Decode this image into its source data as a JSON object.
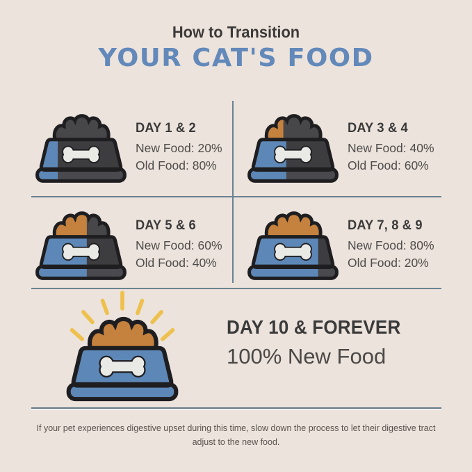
{
  "title": {
    "line1": "How to Transition",
    "line2": "YOUR CAT'S FOOD"
  },
  "steps": [
    {
      "day": "DAY 1 & 2",
      "new_food": "New Food: 20%",
      "old_food": "Old Food: 80%",
      "bowl": {
        "blue_fill_pct": 26,
        "orange_food_pct": 0
      }
    },
    {
      "day": "DAY 3 & 4",
      "new_food": "New Food: 40%",
      "old_food": "Old Food: 60%",
      "bowl": {
        "blue_fill_pct": 43,
        "orange_food_pct": 40
      }
    },
    {
      "day": "DAY 5 & 6",
      "new_food": "New Food: 60%",
      "old_food": "Old Food: 40%",
      "bowl": {
        "blue_fill_pct": 56,
        "orange_food_pct": 56
      }
    },
    {
      "day": "DAY 7, 8 & 9",
      "new_food": "New Food: 80%",
      "old_food": "Old Food: 20%",
      "bowl": {
        "blue_fill_pct": 76,
        "orange_food_pct": 100
      }
    }
  ],
  "final": {
    "day": "DAY 10 & FOREVER",
    "subtitle": "100% New Food",
    "bowl": {
      "blue_fill_pct": 100,
      "orange_food_pct": 100
    }
  },
  "footer": "If your pet experiences digestive upset during this time, slow down the process to let their digestive tract adjust to the new food.",
  "colors": {
    "background": "#ece3dc",
    "title_dark": "#3c3a38",
    "title_blue": "#6289ba",
    "bowl_blue": "#5d87b6",
    "bowl_gray": "#3d3d40",
    "bowl_gray_light": "#4a4a4e",
    "food_gray": "#47474a",
    "food_orange": "#c5813e",
    "outline": "#1e1e21",
    "bone": "#e9e9e6",
    "ray_yellow": "#eec14e",
    "divider": "#6a8292",
    "body_text": "#4e4c4a"
  }
}
